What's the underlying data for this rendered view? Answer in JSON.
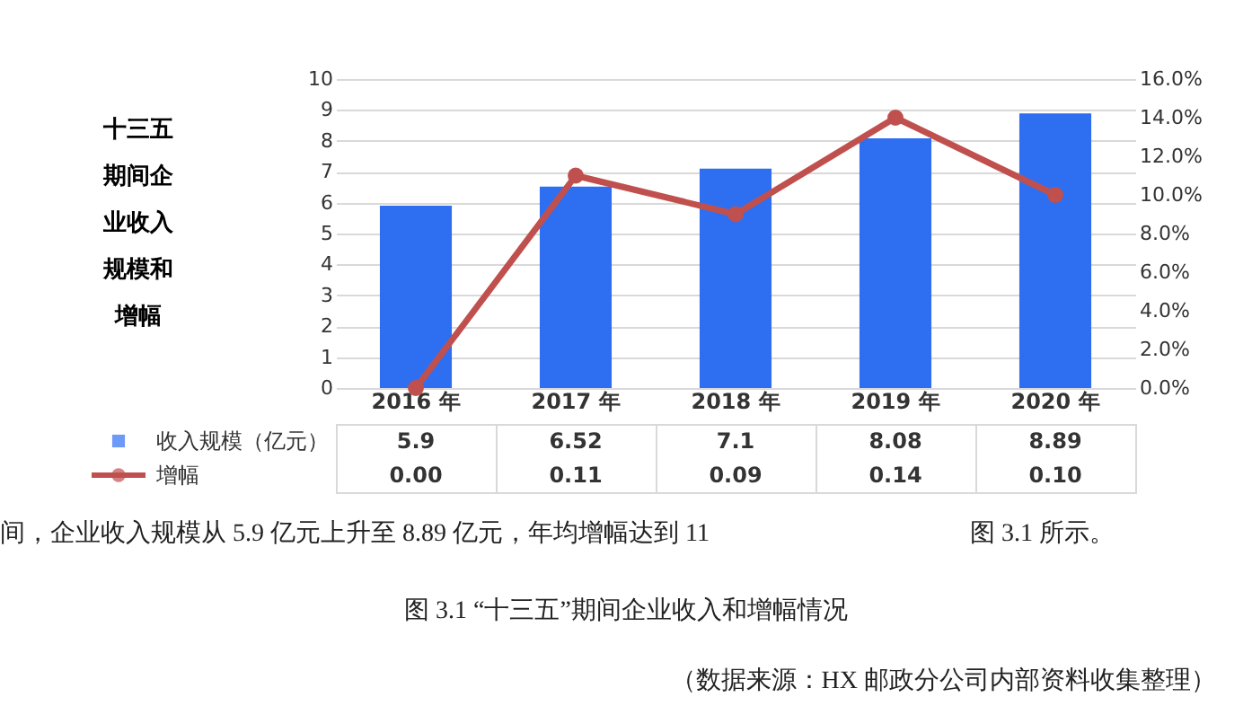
{
  "chart_data": {
    "type": "bar",
    "title": "十三五期间企业收入规模和增幅",
    "categories": [
      "2016 年",
      "2017 年",
      "2018 年",
      "2019 年",
      "2020 年"
    ],
    "series": [
      {
        "name": "收入规模（亿元）",
        "color": "#2e6ff2",
        "values": [
          5.9,
          6.52,
          7.1,
          8.08,
          8.89
        ],
        "value_labels": [
          "5.9",
          "6.52",
          "7.1",
          "8.08",
          "8.89"
        ]
      },
      {
        "name": "增幅",
        "type": "line",
        "axis": "y2",
        "color": "#c0504d",
        "values": [
          0.0,
          0.11,
          0.09,
          0.14,
          0.1
        ],
        "value_labels": [
          "0.00",
          "0.11",
          "0.09",
          "0.14",
          "0.10"
        ]
      }
    ],
    "ylim": [
      0,
      10
    ],
    "yticks": [
      0,
      1,
      2,
      3,
      4,
      5,
      6,
      7,
      8,
      9,
      10
    ],
    "y2lim": [
      0,
      0.16
    ],
    "y2ticks": [
      {
        "value": 0,
        "label": "0.0%"
      },
      {
        "value": 0.02,
        "label": "2.0%"
      },
      {
        "value": 0.04,
        "label": "4.0%"
      },
      {
        "value": 0.06,
        "label": "6.0%"
      },
      {
        "value": 0.08,
        "label": "8.0%"
      },
      {
        "value": 0.1,
        "label": "10.0%"
      },
      {
        "value": 0.12,
        "label": "12.0%"
      },
      {
        "value": 0.14,
        "label": "14.0%"
      },
      {
        "value": 0.16,
        "label": "16.0%"
      }
    ],
    "grid": "y",
    "legend": "bottom",
    "marker": "circle",
    "line_style": "solid",
    "annotations": [
      "间，企业收入规模从 5.9 亿元上升至 8.89 亿元，年均增幅达到 11",
      "图 3.1 所示。",
      "图 3.1 “十三五”期间企业收入和增幅情况",
      "（数据来源：HX 邮政分公司内部资料收集整理）"
    ]
  }
}
